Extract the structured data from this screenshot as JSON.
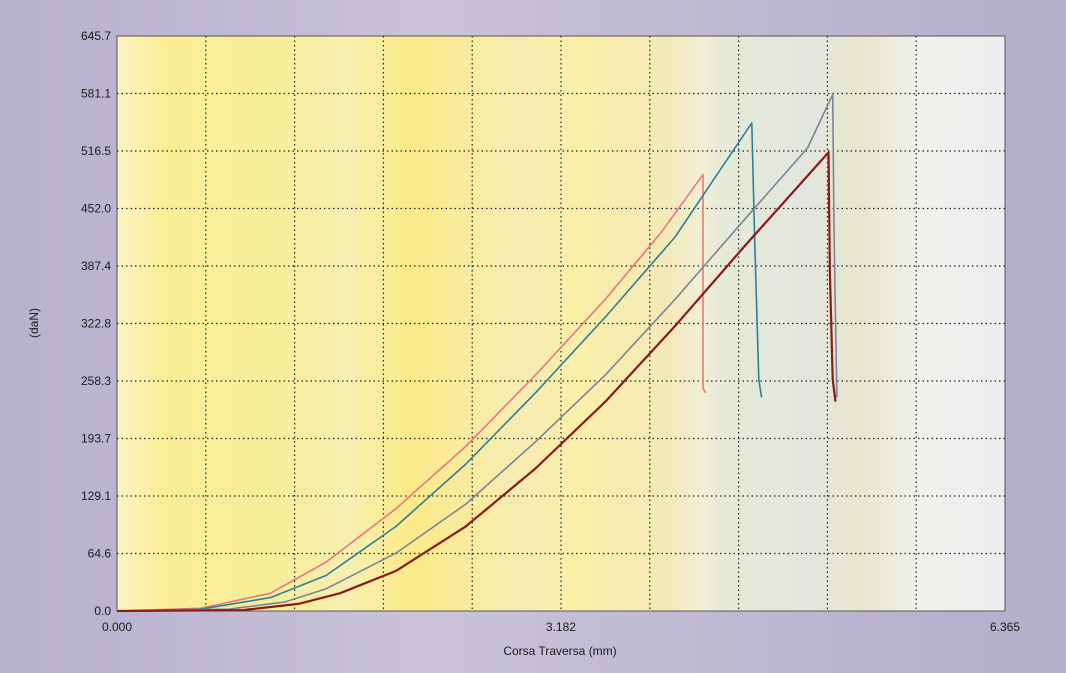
{
  "chart_data": {
    "type": "line",
    "title": "",
    "xlabel": "Corsa Traversa (mm)",
    "ylabel": "(daN)",
    "xlim": [
      0.0,
      6.365
    ],
    "ylim": [
      0.0,
      645.7
    ],
    "x_tick_labels": [
      "0.000",
      "3.182",
      "6.365"
    ],
    "x_tick_values": [
      0.0,
      3.182,
      6.365
    ],
    "y_tick_labels": [
      "0.0",
      "64.6",
      "129.1",
      "193.7",
      "258.3",
      "322.8",
      "387.4",
      "452.0",
      "516.5",
      "581.1",
      "645.7"
    ],
    "y_tick_values": [
      0.0,
      64.6,
      129.1,
      193.7,
      258.3,
      322.8,
      387.4,
      452.0,
      516.5,
      581.1,
      645.7
    ],
    "grid": true,
    "grid_columns": 10,
    "grid_rows": 10,
    "colors": {
      "grid": "#222222",
      "plot_border": "#555555"
    },
    "series": [
      {
        "color": "#e87878",
        "x": [
          0.0,
          0.6,
          1.1,
          1.5,
          2.0,
          2.5,
          3.0,
          3.5,
          3.9,
          4.2,
          4.2,
          4.22
        ],
        "y": [
          0.0,
          3.0,
          20.0,
          55.0,
          115.0,
          185.0,
          265.0,
          350.0,
          425.0,
          490.0,
          250.0,
          245.0
        ]
      },
      {
        "color": "#2f7f9a",
        "x": [
          0.0,
          0.6,
          1.1,
          1.5,
          2.0,
          2.5,
          3.0,
          3.5,
          4.0,
          4.3,
          4.55,
          4.57,
          4.6,
          4.62
        ],
        "y": [
          0.0,
          2.0,
          15.0,
          40.0,
          95.0,
          165.0,
          245.0,
          330.0,
          420.0,
          490.0,
          548.0,
          420.0,
          260.0,
          240.0
        ]
      },
      {
        "color": "#7c8398",
        "x": [
          0.0,
          0.8,
          1.2,
          1.5,
          2.0,
          2.5,
          3.0,
          3.5,
          4.0,
          4.5,
          4.95,
          5.13,
          5.14,
          5.16
        ],
        "y": [
          0.0,
          2.0,
          10.0,
          25.0,
          65.0,
          120.0,
          190.0,
          265.0,
          350.0,
          440.0,
          520.0,
          580.0,
          420.0,
          240.0
        ]
      },
      {
        "color": "#8b1a1a",
        "x": [
          0.0,
          0.9,
          1.3,
          1.6,
          2.0,
          2.5,
          3.0,
          3.5,
          4.0,
          4.5,
          4.9,
          5.1,
          5.11,
          5.13,
          5.15
        ],
        "y": [
          0.0,
          1.0,
          8.0,
          20.0,
          45.0,
          95.0,
          160.0,
          235.0,
          320.0,
          410.0,
          480.0,
          515.0,
          380.0,
          260.0,
          235.0
        ]
      }
    ]
  }
}
